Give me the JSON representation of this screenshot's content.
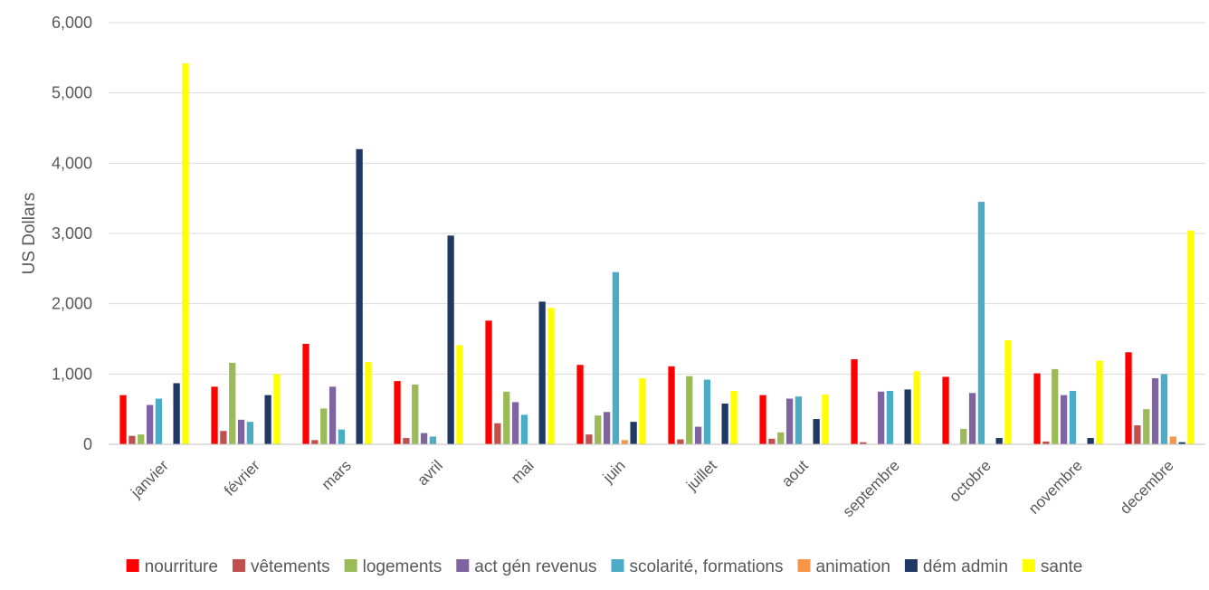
{
  "chart_data": {
    "type": "bar",
    "title": "",
    "xlabel": "",
    "ylabel": "US Dollars",
    "ylim": [
      0,
      6000
    ],
    "yticks": [
      0,
      1000,
      2000,
      3000,
      4000,
      5000,
      6000
    ],
    "ytick_labels": [
      "0",
      "1,000",
      "2,000",
      "3,000",
      "4,000",
      "5,000",
      "6,000"
    ],
    "grid": true,
    "legend_position": "bottom",
    "categories": [
      "janvier",
      "février",
      "mars",
      "avril",
      "mai",
      "juin",
      "juillet",
      "aout",
      "septembre",
      "octobre",
      "novembre",
      "decembre"
    ],
    "series": [
      {
        "name": "nourriture",
        "color": "#ff0000",
        "values": [
          700,
          820,
          1430,
          900,
          1760,
          1130,
          1110,
          700,
          1210,
          960,
          1010,
          1310
        ]
      },
      {
        "name": "vêtements",
        "color": "#c0504d",
        "values": [
          120,
          190,
          60,
          90,
          300,
          140,
          70,
          80,
          30,
          0,
          40,
          270
        ]
      },
      {
        "name": "logements",
        "color": "#9bbb59",
        "values": [
          140,
          1160,
          510,
          850,
          750,
          410,
          970,
          170,
          0,
          220,
          1070,
          500
        ]
      },
      {
        "name": "act gén revenus",
        "color": "#8064a2",
        "values": [
          560,
          350,
          820,
          160,
          600,
          460,
          250,
          650,
          750,
          730,
          700,
          940
        ]
      },
      {
        "name": "scolarité, formations",
        "color": "#4bacc6",
        "values": [
          650,
          320,
          210,
          110,
          420,
          2450,
          920,
          680,
          760,
          3450,
          760,
          1000
        ]
      },
      {
        "name": "animation",
        "color": "#f79646",
        "values": [
          0,
          0,
          0,
          0,
          0,
          60,
          0,
          0,
          0,
          0,
          0,
          110
        ]
      },
      {
        "name": "dém admin",
        "color": "#1f3864",
        "values": [
          870,
          700,
          4200,
          2970,
          2030,
          320,
          580,
          360,
          780,
          90,
          90,
          30
        ]
      },
      {
        "name": "sante",
        "color": "#ffff00",
        "values": [
          5420,
          1000,
          1170,
          1410,
          1940,
          940,
          760,
          710,
          1040,
          1480,
          1190,
          3040
        ]
      }
    ]
  }
}
